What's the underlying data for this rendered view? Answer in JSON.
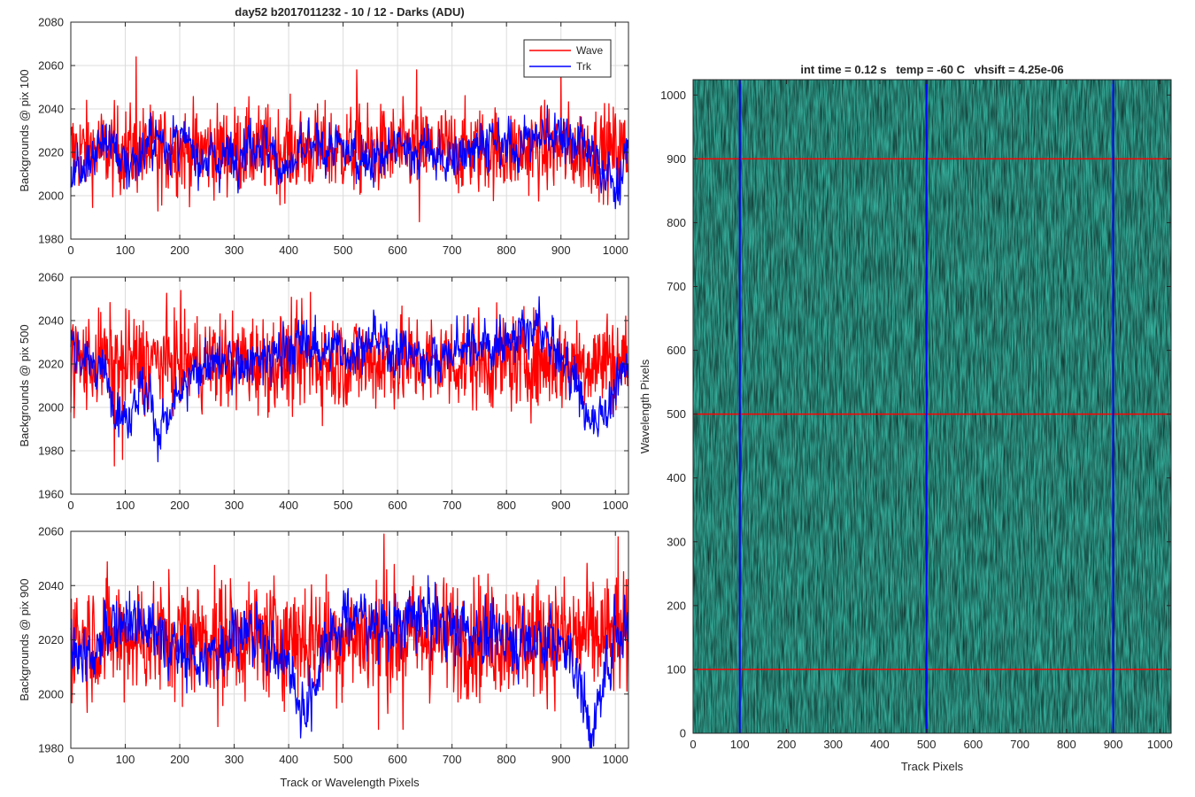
{
  "chart_data": [
    {
      "type": "line",
      "title": "day52 b2017011232 - 10 / 12 - Darks (ADU)",
      "xlabel": "",
      "ylabel": "Backgrounds @ pix 100",
      "xlim": [
        0,
        1024
      ],
      "ylim": [
        1980,
        2080
      ],
      "xticks": [
        0,
        100,
        200,
        300,
        400,
        500,
        600,
        700,
        800,
        900,
        1000
      ],
      "yticks": [
        1980,
        2000,
        2020,
        2040,
        2060,
        2080
      ],
      "grid": true,
      "legend": {
        "position": "top-right",
        "entries": [
          "Wave",
          "Trk"
        ]
      },
      "series": [
        {
          "name": "Wave",
          "color": "#ff0000",
          "mean": 2021,
          "noise": 10,
          "drift": [],
          "peaks": [
            [
              120,
              2064
            ],
            [
              525,
              2058
            ],
            [
              635,
              2058
            ],
            [
              900,
              2058
            ],
            [
              640,
              1988
            ],
            [
              160,
              1993
            ]
          ]
        },
        {
          "name": "Trk",
          "color": "#0000ff",
          "mean": 2021,
          "noise": 6,
          "drift": [
            [
              0,
              2010
            ],
            [
              30,
              2018
            ],
            [
              70,
              2026
            ],
            [
              100,
              2014
            ],
            [
              160,
              2026
            ],
            [
              200,
              2024
            ],
            [
              260,
              2016
            ],
            [
              300,
              2020
            ],
            [
              340,
              2026
            ],
            [
              380,
              2016
            ],
            [
              400,
              2012
            ],
            [
              440,
              2022
            ],
            [
              520,
              2020
            ],
            [
              560,
              2016
            ],
            [
              600,
              2022
            ],
            [
              660,
              2020
            ],
            [
              700,
              2014
            ],
            [
              740,
              2026
            ],
            [
              800,
              2022
            ],
            [
              850,
              2026
            ],
            [
              900,
              2030
            ],
            [
              960,
              2018
            ],
            [
              1000,
              2004
            ],
            [
              1024,
              2018
            ]
          ],
          "peaks": []
        }
      ]
    },
    {
      "type": "line",
      "title": "",
      "xlabel": "",
      "ylabel": "Backgrounds @ pix 500",
      "xlim": [
        0,
        1024
      ],
      "ylim": [
        1960,
        2060
      ],
      "xticks": [
        0,
        100,
        200,
        300,
        400,
        500,
        600,
        700,
        800,
        900,
        1000
      ],
      "yticks": [
        1960,
        1980,
        2000,
        2020,
        2040,
        2060
      ],
      "grid": true,
      "series": [
        {
          "name": "Wave",
          "color": "#ff0000",
          "mean": 2021,
          "noise": 11,
          "drift": [],
          "peaks": [
            [
              80,
              1973
            ],
            [
              95,
              1976
            ],
            [
              440,
              2053
            ],
            [
              985,
              2043
            ]
          ]
        },
        {
          "name": "Trk",
          "color": "#0000ff",
          "mean": 2021,
          "noise": 6,
          "drift": [
            [
              0,
              2030
            ],
            [
              30,
              2022
            ],
            [
              60,
              2016
            ],
            [
              100,
              1995
            ],
            [
              130,
              2010
            ],
            [
              150,
              2002
            ],
            [
              160,
              1987
            ],
            [
              200,
              2005
            ],
            [
              240,
              2020
            ],
            [
              300,
              2020
            ],
            [
              360,
              2022
            ],
            [
              430,
              2030
            ],
            [
              500,
              2025
            ],
            [
              560,
              2030
            ],
            [
              620,
              2025
            ],
            [
              680,
              2022
            ],
            [
              720,
              2028
            ],
            [
              780,
              2030
            ],
            [
              860,
              2035
            ],
            [
              900,
              2022
            ],
            [
              930,
              2012
            ],
            [
              950,
              1992
            ],
            [
              980,
              2000
            ],
            [
              1000,
              2006
            ],
            [
              1024,
              2022
            ]
          ],
          "peaks": [
            [
              860,
              2051
            ]
          ]
        }
      ]
    },
    {
      "type": "line",
      "title": "",
      "xlabel": "Track or Wavelength Pixels",
      "ylabel": "Backgrounds @ pix 900",
      "xlim": [
        0,
        1024
      ],
      "ylim": [
        1980,
        2060
      ],
      "xticks": [
        0,
        100,
        200,
        300,
        400,
        500,
        600,
        700,
        800,
        900,
        1000
      ],
      "yticks": [
        1980,
        2000,
        2020,
        2040,
        2060
      ],
      "grid": true,
      "series": [
        {
          "name": "Wave",
          "color": "#ff0000",
          "mean": 2021,
          "noise": 11,
          "drift": [],
          "peaks": [
            [
              575,
              2059
            ],
            [
              1005,
              2058
            ],
            [
              270,
              1988
            ],
            [
              565,
              1987
            ],
            [
              610,
              1987
            ]
          ]
        },
        {
          "name": "Trk",
          "color": "#0000ff",
          "mean": 2021,
          "noise": 6,
          "drift": [
            [
              0,
              2020
            ],
            [
              40,
              2012
            ],
            [
              90,
              2030
            ],
            [
              150,
              2024
            ],
            [
              200,
              2015
            ],
            [
              260,
              2012
            ],
            [
              300,
              2025
            ],
            [
              360,
              2020
            ],
            [
              400,
              2010
            ],
            [
              420,
              1996
            ],
            [
              440,
              1998
            ],
            [
              470,
              2022
            ],
            [
              520,
              2030
            ],
            [
              560,
              2026
            ],
            [
              600,
              2024
            ],
            [
              660,
              2030
            ],
            [
              700,
              2024
            ],
            [
              760,
              2022
            ],
            [
              840,
              2020
            ],
            [
              890,
              2020
            ],
            [
              920,
              2014
            ],
            [
              940,
              2000
            ],
            [
              960,
              1984
            ],
            [
              980,
              2008
            ],
            [
              1000,
              2022
            ],
            [
              1024,
              2026
            ]
          ],
          "peaks": []
        }
      ]
    },
    {
      "type": "heatmap",
      "title": "int time = 0.12 s   temp = -60 C   vhsift = 4.25e-06",
      "xlabel": "Track Pixels",
      "ylabel": "Wavelength Pixels",
      "xlim": [
        0,
        1024
      ],
      "ylim": [
        0,
        1024
      ],
      "xticks": [
        0,
        100,
        200,
        300,
        400,
        500,
        600,
        700,
        800,
        900,
        1000
      ],
      "yticks": [
        0,
        100,
        200,
        300,
        400,
        500,
        600,
        700,
        800,
        900,
        1000
      ],
      "colormap": "parula",
      "colors": {
        "low": "#2a9bb8",
        "mid": "#35ad9a",
        "high": "#b6c548"
      },
      "vertical_markers": {
        "values": [
          100,
          500,
          900
        ],
        "color": "#0000ff"
      },
      "horizontal_markers": {
        "values": [
          100,
          500,
          900
        ],
        "color": "#ff0000"
      }
    }
  ]
}
